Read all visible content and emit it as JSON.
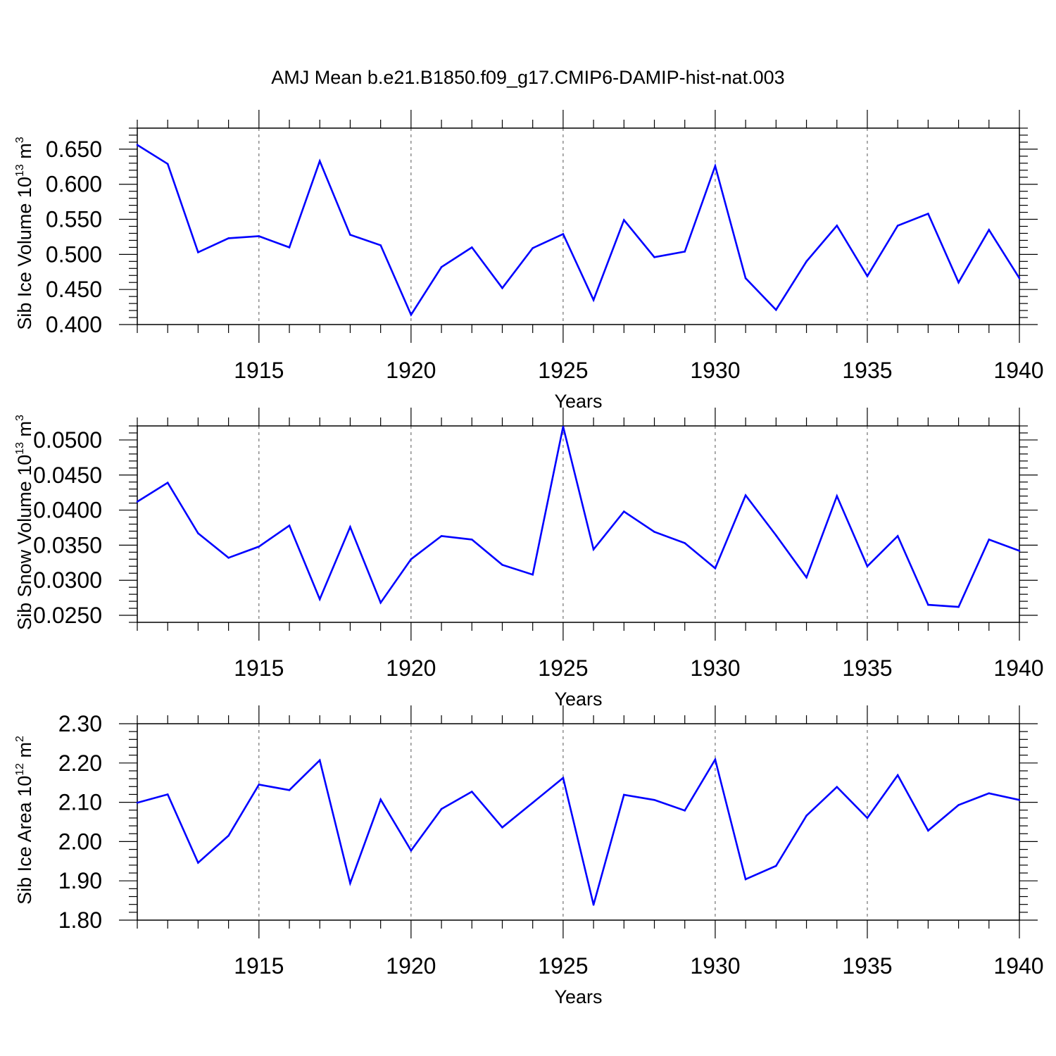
{
  "title": "AMJ Mean b.e21.B1850.f09_g17.CMIP6-DAMIP-hist-nat.003",
  "line_color": "#0000ff",
  "chart_data": [
    {
      "type": "line",
      "xlabel": "Years",
      "ylabel": {
        "base": "Sib Ice Volume 10",
        "exp": "13",
        "unit": " m",
        "unit_exp": "3"
      },
      "xlim": [
        1911,
        1940
      ],
      "ylim": [
        0.4,
        0.68
      ],
      "yticks": [
        0.4,
        0.45,
        0.5,
        0.55,
        0.6,
        0.65
      ],
      "yticklabels": [
        "0.400",
        "0.450",
        "0.500",
        "0.550",
        "0.600",
        "0.650"
      ],
      "xticks": [
        1915,
        1920,
        1925,
        1930,
        1935,
        1940
      ],
      "xticklabels": [
        "1915",
        "1920",
        "1925",
        "1930",
        "1935",
        "1940"
      ],
      "grid": "dashed vertical at major x ticks",
      "x": [
        1911,
        1912,
        1913,
        1914,
        1915,
        1916,
        1917,
        1918,
        1919,
        1920,
        1921,
        1922,
        1923,
        1924,
        1925,
        1926,
        1927,
        1928,
        1929,
        1930,
        1931,
        1932,
        1933,
        1934,
        1935,
        1936,
        1937,
        1938,
        1939,
        1940
      ],
      "values": [
        0.656,
        0.629,
        0.503,
        0.523,
        0.526,
        0.51,
        0.633,
        0.528,
        0.513,
        0.414,
        0.482,
        0.51,
        0.452,
        0.509,
        0.529,
        0.435,
        0.549,
        0.496,
        0.504,
        0.626,
        0.466,
        0.421,
        0.49,
        0.541,
        0.469,
        0.541,
        0.558,
        0.46,
        0.535,
        0.466
      ]
    },
    {
      "type": "line",
      "xlabel": "Years",
      "ylabel": {
        "base": "Sib Snow Volume 10",
        "exp": "13",
        "unit": " m",
        "unit_exp": "3"
      },
      "xlim": [
        1911,
        1940
      ],
      "ylim": [
        0.024,
        0.052
      ],
      "yticks": [
        0.025,
        0.03,
        0.035,
        0.04,
        0.045,
        0.05
      ],
      "yticklabels": [
        "0.0250",
        "0.0300",
        "0.0350",
        "0.0400",
        "0.0450",
        "0.0500"
      ],
      "xticks": [
        1915,
        1920,
        1925,
        1930,
        1935,
        1940
      ],
      "xticklabels": [
        "1915",
        "1920",
        "1925",
        "1930",
        "1935",
        "1940"
      ],
      "grid": "dashed vertical at major x ticks",
      "x": [
        1911,
        1912,
        1913,
        1914,
        1915,
        1916,
        1917,
        1918,
        1919,
        1920,
        1921,
        1922,
        1923,
        1924,
        1925,
        1926,
        1927,
        1928,
        1929,
        1930,
        1931,
        1932,
        1933,
        1934,
        1935,
        1936,
        1937,
        1938,
        1939,
        1940
      ],
      "values": [
        0.0412,
        0.0439,
        0.0367,
        0.0332,
        0.0348,
        0.0378,
        0.0273,
        0.0376,
        0.0268,
        0.033,
        0.0363,
        0.0358,
        0.0322,
        0.0308,
        0.0519,
        0.0344,
        0.0398,
        0.0369,
        0.0353,
        0.0317,
        0.0421,
        0.0364,
        0.0304,
        0.042,
        0.032,
        0.0363,
        0.0265,
        0.0262,
        0.0358,
        0.0342
      ]
    },
    {
      "type": "line",
      "xlabel": "Years",
      "ylabel": {
        "base": "Sib Ice Area 10",
        "exp": "12",
        "unit": " m",
        "unit_exp": "2"
      },
      "xlim": [
        1911,
        1940
      ],
      "ylim": [
        1.8,
        2.3
      ],
      "yticks": [
        1.8,
        1.9,
        2.0,
        2.1,
        2.2,
        2.3
      ],
      "yticklabels": [
        "1.80",
        "1.90",
        "2.00",
        "2.10",
        "2.20",
        "2.30"
      ],
      "xticks": [
        1915,
        1920,
        1925,
        1930,
        1935,
        1940
      ],
      "xticklabels": [
        "1915",
        "1920",
        "1925",
        "1930",
        "1935",
        "1940"
      ],
      "grid": "dashed vertical at major x ticks",
      "x": [
        1911,
        1912,
        1913,
        1914,
        1915,
        1916,
        1917,
        1918,
        1919,
        1920,
        1921,
        1922,
        1923,
        1924,
        1925,
        1926,
        1927,
        1928,
        1929,
        1930,
        1931,
        1932,
        1933,
        1934,
        1935,
        1936,
        1937,
        1938,
        1939,
        1940
      ],
      "values": [
        2.099,
        2.12,
        1.946,
        2.015,
        2.145,
        2.131,
        2.207,
        1.894,
        2.107,
        1.977,
        2.083,
        2.127,
        2.036,
        2.099,
        2.162,
        1.839,
        2.119,
        2.106,
        2.079,
        2.209,
        1.904,
        1.938,
        2.066,
        2.139,
        2.06,
        2.169,
        2.028,
        2.093,
        2.123,
        2.106
      ]
    }
  ]
}
